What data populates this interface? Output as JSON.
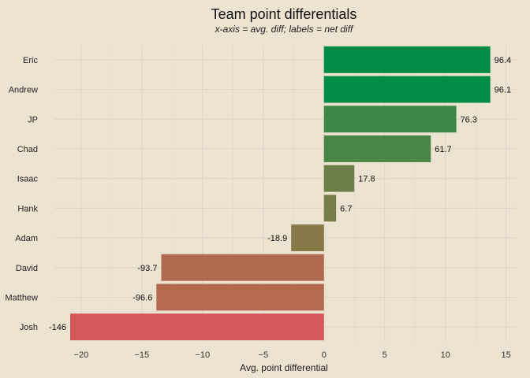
{
  "chart_data": {
    "type": "bar",
    "orientation": "horizontal",
    "title": "Team point differentials",
    "subtitle": "x-axis = avg. diff; labels = net diff",
    "xlabel": "Avg. point differential",
    "ylabel": "",
    "xlim": [
      -22.2,
      15.8
    ],
    "xticks": [
      -20,
      -15,
      -10,
      -5,
      0,
      5,
      10,
      15
    ],
    "xtick_labels": [
      "−20",
      "−15",
      "−10",
      "−5",
      "0",
      "5",
      "10",
      "15"
    ],
    "grid": true,
    "categories": [
      "Eric",
      "Andrew",
      "JP",
      "Chad",
      "Isaac",
      "Hank",
      "Adam",
      "David",
      "Matthew",
      "Josh"
    ],
    "values": [
      13.7,
      13.7,
      10.9,
      8.8,
      2.5,
      1.0,
      -2.7,
      -13.4,
      -13.8,
      -20.9
    ],
    "labels": [
      "96.4",
      "96.1",
      "76.3",
      "61.7",
      "17.8",
      "6.7",
      "-18.9",
      "-93.7",
      "-96.6",
      "-146"
    ],
    "colors": [
      "#008c44",
      "#008c44",
      "#3a8947",
      "#4a8548",
      "#6e7e48",
      "#787c48",
      "#877a48",
      "#b06a50",
      "#b56a50",
      "#d4575a"
    ]
  }
}
